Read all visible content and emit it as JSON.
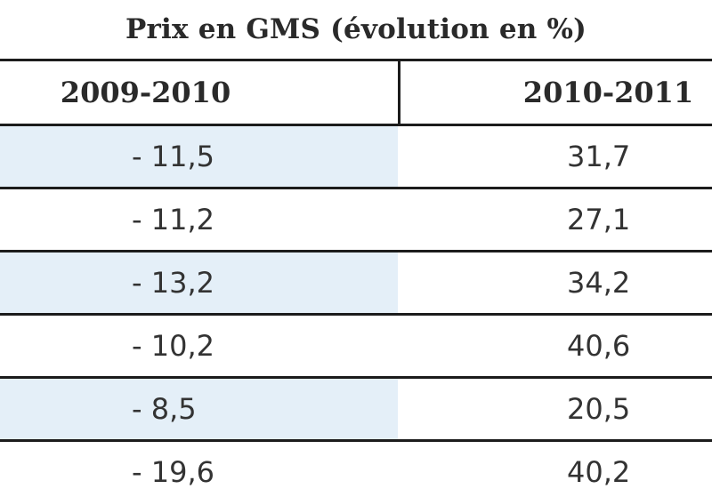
{
  "chart_data": {
    "type": "table",
    "title": "Prix en GMS (évolution en %)",
    "columns": [
      "2009-2010",
      "2010-2011"
    ],
    "rows": [
      [
        "- 11,5",
        "31,7"
      ],
      [
        "- 11,2",
        "27,1"
      ],
      [
        "- 13,2",
        "34,2"
      ],
      [
        "- 10,2",
        "40,6"
      ],
      [
        "- 8,5",
        "20,5"
      ],
      [
        "- 19,6",
        "40,2"
      ]
    ]
  }
}
